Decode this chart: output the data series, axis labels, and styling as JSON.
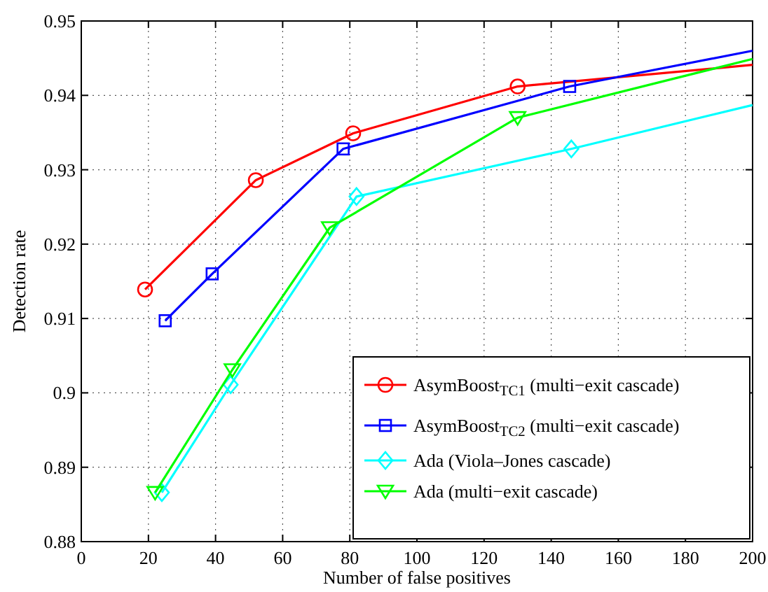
{
  "chart_data": {
    "type": "line",
    "xlabel": "Number of false positives",
    "ylabel": "Detection rate",
    "xlim": [
      0,
      200
    ],
    "xticks": [
      0,
      20,
      40,
      60,
      80,
      100,
      120,
      140,
      160,
      180,
      200
    ],
    "ylim": [
      0.88,
      0.95
    ],
    "yticks": [
      0.88,
      0.89,
      0.9,
      0.91,
      0.92,
      0.93,
      0.94,
      0.95
    ],
    "grid": true,
    "legend": "bottom right",
    "line_style": "solid",
    "series": [
      {
        "name": "AsymBoost$_{TC1}$ (multi−exit cascade)",
        "color": "#ff0000",
        "marker": "circle",
        "x": [
          19,
          52,
          81,
          130,
          200
        ],
        "values": [
          0.9139,
          0.9286,
          0.9349,
          0.9412,
          0.9441
        ]
      },
      {
        "name": "AsymBoost$_{TC2}$ (multi−exit cascade)",
        "color": "#0000ff",
        "marker": "square",
        "x": [
          25,
          39,
          78,
          145.5,
          200
        ],
        "values": [
          0.9097,
          0.916,
          0.9328,
          0.9412,
          0.946
        ]
      },
      {
        "name": "Ada (Viola–Jones cascade)",
        "color": "#00ffff",
        "marker": "diamond",
        "x": [
          24,
          44.5,
          82,
          146,
          200
        ],
        "values": [
          0.8866,
          0.9011,
          0.9264,
          0.9328,
          0.9387
        ]
      },
      {
        "name": "Ada (multi−exit cascade)",
        "color": "#00ff00",
        "marker": "triangle-down",
        "x": [
          22,
          45,
          74,
          130,
          200
        ],
        "values": [
          0.8866,
          0.9031,
          0.9222,
          0.937,
          0.9449
        ]
      }
    ]
  }
}
